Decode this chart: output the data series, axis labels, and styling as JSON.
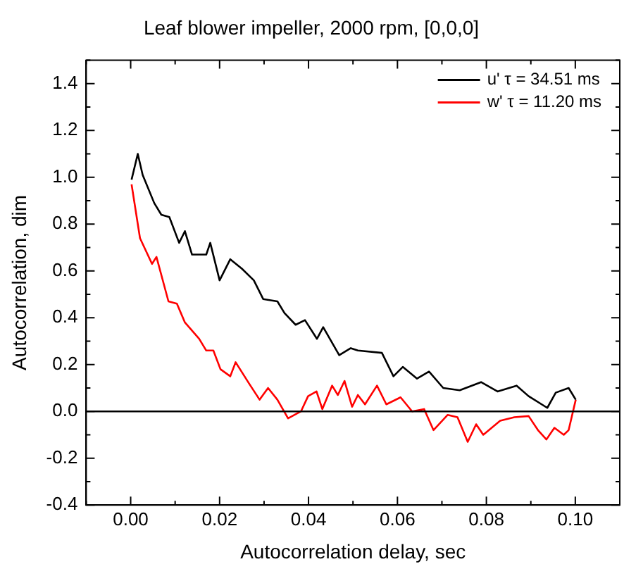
{
  "chart_data": {
    "type": "line",
    "title": "Leaf blower impeller, 2000 rpm, [0,0,0]",
    "xlabel": "Autocorrelation delay, sec",
    "ylabel": "Autocorrelation, dim",
    "xlim": [
      -0.01,
      0.11
    ],
    "xticks": [
      {
        "value": -0.01,
        "label": null
      },
      {
        "value": 0,
        "label": "0.00"
      },
      {
        "value": 0.01,
        "label": null
      },
      {
        "value": 0.02,
        "label": "0.02"
      },
      {
        "value": 0.03,
        "label": null
      },
      {
        "value": 0.04,
        "label": "0.04"
      },
      {
        "value": 0.05,
        "label": null
      },
      {
        "value": 0.06,
        "label": "0.06"
      },
      {
        "value": 0.07,
        "label": null
      },
      {
        "value": 0.08,
        "label": "0.08"
      },
      {
        "value": 0.09,
        "label": null
      },
      {
        "value": 0.1,
        "label": "0.10"
      },
      {
        "value": 0.11,
        "label": null
      }
    ],
    "ylim": [
      -0.4,
      1.5
    ],
    "yticks": [
      {
        "value": -0.4,
        "label": "-0.4"
      },
      {
        "value": -0.3,
        "label": null
      },
      {
        "value": -0.2,
        "label": "-0.2"
      },
      {
        "value": -0.1,
        "label": null
      },
      {
        "value": 0,
        "label": "0.0"
      },
      {
        "value": 0.1,
        "label": null
      },
      {
        "value": 0.2,
        "label": "0.2"
      },
      {
        "value": 0.3,
        "label": null
      },
      {
        "value": 0.4,
        "label": "0.4"
      },
      {
        "value": 0.5,
        "label": null
      },
      {
        "value": 0.6,
        "label": "0.6"
      },
      {
        "value": 0.7,
        "label": null
      },
      {
        "value": 0.8,
        "label": "0.8"
      },
      {
        "value": 0.9,
        "label": null
      },
      {
        "value": 1.0,
        "label": "1.0"
      },
      {
        "value": 1.1,
        "label": null
      },
      {
        "value": 1.2,
        "label": "1.2"
      },
      {
        "value": 1.3,
        "label": null
      },
      {
        "value": 1.4,
        "label": "1.4"
      },
      {
        "value": 1.5,
        "label": null
      }
    ],
    "grid": false,
    "legend": "top right",
    "marker": "none",
    "line_style": "solid",
    "ref_lines": [
      {
        "axis": "y",
        "value": 0,
        "color": "#000000"
      }
    ],
    "series": [
      {
        "name": "u' τ = 34.51 ms",
        "color": "#000000",
        "x": [
          0.0002,
          0.0016,
          0.0027,
          0.0053,
          0.0069,
          0.0087,
          0.0109,
          0.0122,
          0.0138,
          0.017,
          0.0179,
          0.02,
          0.0224,
          0.025,
          0.0277,
          0.0298,
          0.033,
          0.0346,
          0.0371,
          0.0392,
          0.0419,
          0.0433,
          0.0469,
          0.0495,
          0.0511,
          0.0565,
          0.0591,
          0.0612,
          0.0644,
          0.0671,
          0.0703,
          0.074,
          0.0788,
          0.0825,
          0.0868,
          0.0895,
          0.0937,
          0.0956,
          0.0985,
          0.1001
        ],
        "values": [
          0.99,
          1.1,
          1.01,
          0.89,
          0.84,
          0.83,
          0.72,
          0.77,
          0.67,
          0.67,
          0.72,
          0.56,
          0.65,
          0.61,
          0.56,
          0.48,
          0.47,
          0.42,
          0.37,
          0.39,
          0.31,
          0.36,
          0.24,
          0.27,
          0.26,
          0.25,
          0.15,
          0.19,
          0.14,
          0.17,
          0.1,
          0.09,
          0.125,
          0.085,
          0.11,
          0.065,
          0.015,
          0.08,
          0.1,
          0.05
        ]
      },
      {
        "name": "w' τ = 11.20 ms",
        "color": "#ff0000",
        "x": [
          0.0002,
          0.0021,
          0.0048,
          0.0058,
          0.0085,
          0.0104,
          0.0122,
          0.0154,
          0.017,
          0.0186,
          0.0202,
          0.0224,
          0.0236,
          0.0266,
          0.029,
          0.0309,
          0.033,
          0.0354,
          0.0383,
          0.0399,
          0.0418,
          0.0431,
          0.0453,
          0.0466,
          0.0481,
          0.0498,
          0.0511,
          0.0527,
          0.0554,
          0.0575,
          0.0607,
          0.0633,
          0.066,
          0.0681,
          0.0713,
          0.0735,
          0.0758,
          0.0777,
          0.0793,
          0.0831,
          0.0863,
          0.0895,
          0.0916,
          0.0935,
          0.0953,
          0.0974,
          0.0985,
          0.1001
        ],
        "values": [
          0.97,
          0.74,
          0.63,
          0.66,
          0.47,
          0.46,
          0.38,
          0.31,
          0.26,
          0.26,
          0.18,
          0.15,
          0.21,
          0.12,
          0.05,
          0.1,
          0.05,
          -0.03,
          0.0,
          0.065,
          0.085,
          0.01,
          0.11,
          0.07,
          0.13,
          0.02,
          0.07,
          0.03,
          0.11,
          0.03,
          0.06,
          0.0,
          0.01,
          -0.08,
          -0.015,
          -0.025,
          -0.13,
          -0.055,
          -0.1,
          -0.04,
          -0.025,
          -0.02,
          -0.08,
          -0.12,
          -0.07,
          -0.1,
          -0.08,
          0.05
        ]
      }
    ]
  }
}
